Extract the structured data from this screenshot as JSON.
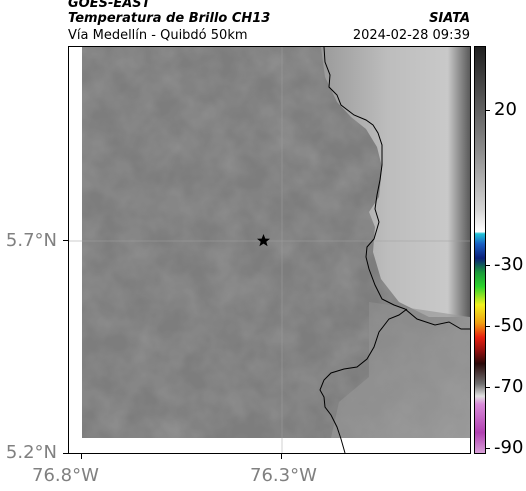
{
  "header": {
    "satellite": "GOES-EAST",
    "product": "Temperatura de Brillo CH13",
    "subtitle": "Vía Medellín - Quibdó 50km",
    "organization": "SIATA",
    "datetime": "2024-02-28 09:39"
  },
  "map": {
    "lat_labels": [
      "5.7°N",
      "5.2°N"
    ],
    "lon_labels": [
      "76.8°W",
      "76.3°W"
    ],
    "marker_icon": "star-icon",
    "colors": {
      "cloud_gray": "#7a7a7a",
      "clear_light": "#c8c8c8",
      "border": "#000000",
      "gridline": "#a0a0a0"
    }
  },
  "colorbar": {
    "labels": [
      "20",
      "-30",
      "-50",
      "-70",
      "-90"
    ]
  }
}
